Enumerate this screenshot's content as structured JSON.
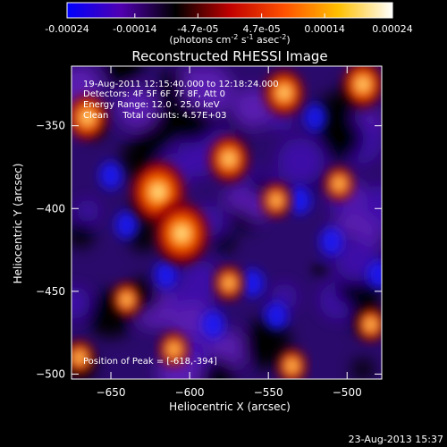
{
  "colorbar": {
    "tick_labels": [
      "-0.00024",
      "-0.00014",
      "-4.7e-05",
      "4.7e-05",
      "0.00014",
      "0.00024"
    ],
    "tick_values": [
      -0.00024,
      -0.00014,
      -4.7e-05,
      4.7e-05,
      0.00014,
      0.00024
    ],
    "range": [
      -0.00024,
      0.00024
    ],
    "unit_label": "(photons cm",
    "unit_exp1": "-2",
    "unit_mid": " s",
    "unit_exp2": "-1",
    "unit_end": " asec",
    "unit_exp3": "-2",
    "unit_close": ")",
    "colors": [
      "#0000ff",
      "#5000b0",
      "#000000",
      "#c00000",
      "#ff5000",
      "#ffc000",
      "#ffffff"
    ]
  },
  "chart_data": {
    "type": "heatmap",
    "title": "Reconstructed RHESSI Image",
    "xlabel": "Heliocentric X (arcsec)",
    "ylabel": "Heliocentric Y (arcsec)",
    "xlim": [
      -675,
      -478
    ],
    "ylim": [
      -503,
      -314
    ],
    "x_ticks": [
      -650,
      -600,
      -550,
      -500
    ],
    "y_ticks": [
      -350,
      -400,
      -450,
      -500
    ],
    "info_lines": [
      "19-Aug-2011 12:15:40.000 to 12:18:24.000",
      "Detectors: 4F 5F 6F 7F 8F, Att 0",
      "Energy Range: 12.0 - 25.0 keV",
      "Clean     Total counts: 4.57E+03"
    ],
    "peak_label": "Position of Peak = [-618,-394]",
    "peak": [
      -618,
      -394
    ],
    "peak_value_high": 0.00024,
    "bright_sources": [
      {
        "x": -620,
        "y": -390
      },
      {
        "x": -605,
        "y": -415
      },
      {
        "x": -665,
        "y": -345
      },
      {
        "x": -575,
        "y": -370
      },
      {
        "x": -540,
        "y": -330
      },
      {
        "x": -490,
        "y": -325
      },
      {
        "x": -505,
        "y": -385
      },
      {
        "x": -640,
        "y": -455
      },
      {
        "x": -670,
        "y": -490
      },
      {
        "x": -575,
        "y": -445
      },
      {
        "x": -535,
        "y": -495
      },
      {
        "x": -485,
        "y": -470
      },
      {
        "x": -610,
        "y": -485
      },
      {
        "x": -545,
        "y": -395
      }
    ],
    "negative_minimum": [
      -518,
      -437
    ]
  },
  "timestamp": "23-Aug-2013 15:37"
}
